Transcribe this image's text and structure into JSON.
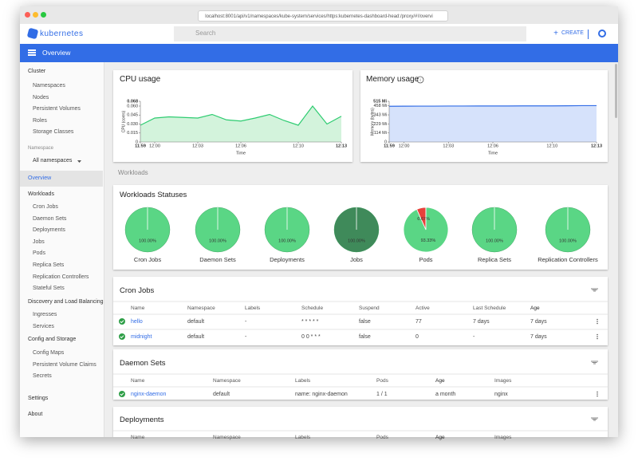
{
  "browser": {
    "url": "localhost:8001/api/v1/namespaces/kube-system/services/https:kubernetes-dashboard-head:/proxy/#!/overvi"
  },
  "header": {
    "logo": "kubernetes",
    "search": "Search",
    "create": "CREATE"
  },
  "toolbar": {
    "title": "Overview"
  },
  "sidebar": {
    "cluster": {
      "title": "Cluster",
      "items": [
        "Namespaces",
        "Nodes",
        "Persistent Volumes",
        "Roles",
        "Storage Classes"
      ]
    },
    "namespace": {
      "label": "Namespace",
      "value": "All namespaces"
    },
    "overview": "Overview",
    "workloads": {
      "title": "Workloads",
      "items": [
        "Cron Jobs",
        "Daemon Sets",
        "Deployments",
        "Jobs",
        "Pods",
        "Replica Sets",
        "Replication Controllers",
        "Stateful Sets"
      ]
    },
    "discovery": {
      "title": "Discovery and Load Balancing",
      "items": [
        "Ingresses",
        "Services"
      ]
    },
    "config": {
      "title": "Config and Storage",
      "items": [
        "Config Maps",
        "Persistent Volume Claims",
        "Secrets"
      ]
    },
    "settings": "Settings",
    "about": "About"
  },
  "cpu_chart": {
    "type": "area",
    "title": "CPU usage",
    "y_label": "CPU (cores)",
    "x_label": "Time",
    "color": "#2ecc71",
    "fill": "#d3f3dc",
    "x": [
      "11:59",
      "12:00",
      "12:01",
      "12:02",
      "12:03",
      "12:04",
      "12:05",
      "12:06",
      "12:07",
      "12:08",
      "12:09",
      "12:10",
      "12:11",
      "12:12",
      "12:13"
    ],
    "values": [
      0.028,
      0.04,
      0.042,
      0.041,
      0.04,
      0.046,
      0.037,
      0.035,
      0.04,
      0.046,
      0.036,
      0.028,
      0.06,
      0.03,
      0.043
    ],
    "ylim": [
      0,
      0.068
    ],
    "yticks": [
      0,
      0.015,
      {
        "value": 0.03,
        "label": "0.030"
      },
      0.045,
      {
        "value": 0.06,
        "label": "0.060"
      },
      0.068
    ],
    "xticks": [
      "11:59",
      "12:00",
      "12:03",
      "12:06",
      "12:10",
      "12:13"
    ]
  },
  "memory_chart": {
    "type": "area",
    "title": "Memory usage",
    "y_label": "Memory (bytes)",
    "x_label": "Time",
    "color": "#326de6",
    "fill": "#d6e2fb",
    "x": [
      "11:59",
      "12:00",
      "12:01",
      "12:02",
      "12:03",
      "12:04",
      "12:05",
      "12:06",
      "12:07",
      "12:08",
      "12:09",
      "12:10",
      "12:11",
      "12:12",
      "12:13"
    ],
    "values": [
      452,
      453,
      454,
      454,
      455,
      455,
      456,
      456,
      456,
      457,
      457,
      457,
      458,
      460,
      460
    ],
    "ylim": [
      0,
      515
    ],
    "yticks": [
      0,
      {
        "value": 114,
        "label": "114 Mi"
      },
      {
        "value": 229,
        "label": "229 Mi"
      },
      {
        "value": 343,
        "label": "343 Mi"
      },
      {
        "value": 458,
        "label": "458 Mi"
      },
      {
        "value": 515,
        "label": "515 Mi"
      }
    ],
    "xticks": [
      "11:59",
      "12:00",
      "12:03",
      "12:06",
      "12:10",
      "12:13"
    ]
  },
  "workloads": {
    "label": "Workloads",
    "title": "Workloads Statuses",
    "type": "pie",
    "statuses": [
      {
        "name": "Cron Jobs",
        "values": [
          100
        ],
        "value_labels": [
          "100.00%"
        ],
        "colors": [
          "#5ad685"
        ]
      },
      {
        "name": "Daemon Sets",
        "values": [
          100
        ],
        "value_labels": [
          "100.00%"
        ],
        "colors": [
          "#5ad685"
        ]
      },
      {
        "name": "Deployments",
        "values": [
          100
        ],
        "value_labels": [
          "100.00%"
        ],
        "colors": [
          "#5ad685"
        ]
      },
      {
        "name": "Jobs",
        "values": [
          100
        ],
        "value_labels": [
          "100.00%"
        ],
        "colors": [
          "#3f8a5a"
        ]
      },
      {
        "name": "Pods",
        "values": [
          93.33,
          6.67
        ],
        "value_labels": [
          "93.33%",
          "6.67%"
        ],
        "colors": [
          "#5ad685",
          "#e8413b"
        ]
      },
      {
        "name": "Replica Sets",
        "values": [
          100
        ],
        "value_labels": [
          "100.00%"
        ],
        "colors": [
          "#5ad685"
        ]
      },
      {
        "name": "Replication Controllers",
        "values": [
          100
        ],
        "value_labels": [
          "100.00%"
        ],
        "colors": [
          "#5ad685"
        ]
      }
    ]
  },
  "cron_jobs": {
    "title": "Cron Jobs",
    "headers": [
      "Name",
      "Namespace",
      "Labels",
      "Schedule",
      "Suspend",
      "Active",
      "Last Schedule",
      "Age"
    ],
    "rows": [
      [
        "hello",
        "default",
        "-",
        "* * * * *",
        "false",
        "77",
        "7 days",
        "7 days"
      ],
      [
        "midnight",
        "default",
        "-",
        "0 0 * * *",
        "false",
        "0",
        "-",
        "7 days"
      ]
    ]
  },
  "daemon_sets": {
    "title": "Daemon Sets",
    "headers": [
      "Name",
      "Namespace",
      "Labels",
      "Pods",
      "Age",
      "Images"
    ],
    "rows": [
      [
        "nginx-daemon",
        "default",
        "name: nginx-daemon",
        "1 / 1",
        "a month",
        "nginx"
      ]
    ]
  },
  "deployments": {
    "title": "Deployments",
    "headers": [
      "Name",
      "Namespace",
      "Labels",
      "Pods",
      "Age",
      "Images"
    ],
    "rows": []
  }
}
